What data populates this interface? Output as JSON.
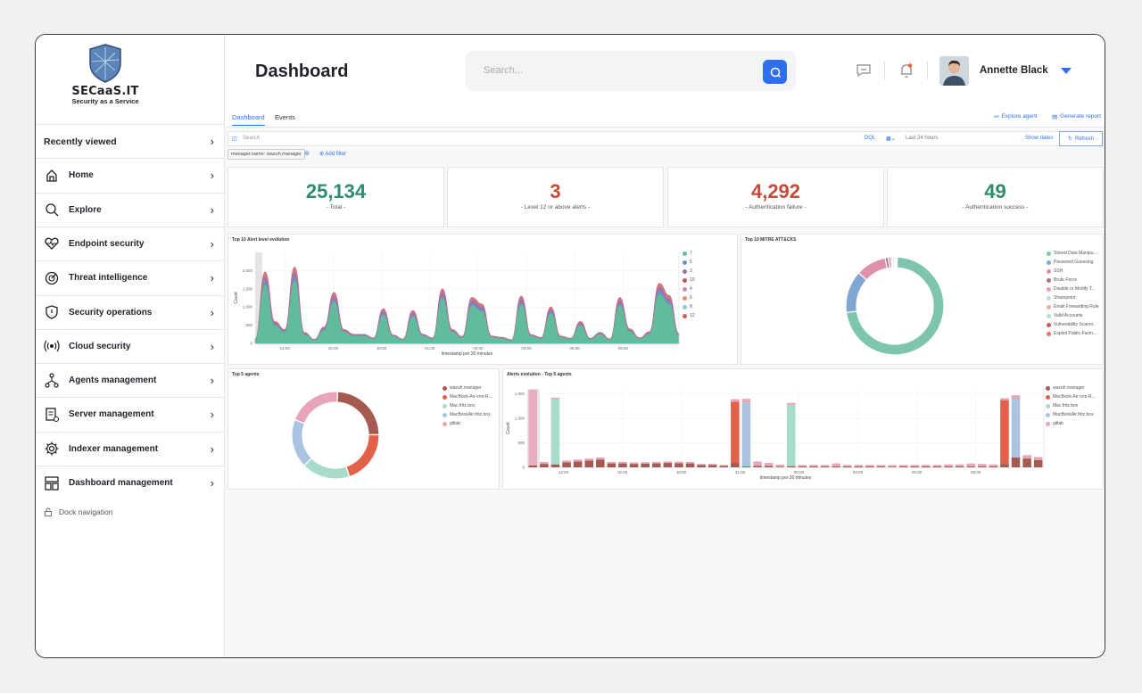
{
  "app": {
    "logo_name": "SECaaS.IT",
    "logo_tagline": "Security as a Service",
    "page_title": "Dashboard"
  },
  "search": {
    "placeholder": "Search..."
  },
  "user": {
    "name": "Annette Black"
  },
  "sidebar": {
    "items": [
      {
        "label": "Recently viewed",
        "icon": "none"
      },
      {
        "label": "Home",
        "icon": "home-icon"
      },
      {
        "label": "Explore",
        "icon": "search-icon"
      },
      {
        "label": "Endpoint security",
        "icon": "heartbeat-icon"
      },
      {
        "label": "Threat intelligence",
        "icon": "radar-icon"
      },
      {
        "label": "Security operations",
        "icon": "shield-icon"
      },
      {
        "label": "Cloud security",
        "icon": "broadcast-icon"
      },
      {
        "label": "Agents management",
        "icon": "network-icon"
      },
      {
        "label": "Server management",
        "icon": "server-doc-icon"
      },
      {
        "label": "Indexer management",
        "icon": "gear-icon"
      },
      {
        "label": "Dashboard management",
        "icon": "layout-icon"
      }
    ],
    "dock": "Dock navigation"
  },
  "tabs": {
    "dashboard": "Dashboard",
    "events": "Events",
    "explore_agent": "Explore agent",
    "generate_report": "Generate report"
  },
  "query": {
    "placeholder": "Search",
    "dql": "DQL",
    "time_range": "Last 24 hours",
    "show_dates": "Show dates",
    "refresh": "Refresh"
  },
  "filters": {
    "pill": "manager.name: wazuh.manager",
    "add": "Add filter"
  },
  "metrics": [
    {
      "value": "25,134",
      "label": "- Total -",
      "color": "#2e8b6e"
    },
    {
      "value": "3",
      "label": "- Level 12 or above alerts -",
      "color": "#c44a3a"
    },
    {
      "value": "4,292",
      "label": "- Authentication failure -",
      "color": "#c44a3a"
    },
    {
      "value": "49",
      "label": "- Authentication success -",
      "color": "#2e8b6e"
    }
  ],
  "chart_data": [
    {
      "type": "area",
      "title": "Top 10 Alert level evolution",
      "xlabel": "timestamp per 30 minutes",
      "ylabel": "Count",
      "y_ticks": [
        "0",
        "500",
        "1,000",
        "1,500",
        "2,000"
      ],
      "ylim": [
        0,
        2500
      ],
      "x_ticks": [
        "12:00",
        "15:00",
        "18:00",
        "21:00",
        "00:00",
        "03:00",
        "06:00",
        "09:00"
      ],
      "legend": [
        "7",
        "5",
        "3",
        "10",
        "4",
        "6",
        "8",
        "12"
      ],
      "legend_colors": [
        "#5fbf9a",
        "#6e8fc4",
        "#9a6fb0",
        "#b65a5a",
        "#c98fa3",
        "#e08f76",
        "#8bc7d8",
        "#d65a5a"
      ],
      "series_total": [
        120,
        1960,
        600,
        380,
        2100,
        300,
        110,
        450,
        1400,
        380,
        250,
        250,
        150,
        950,
        230,
        120,
        900,
        250,
        150,
        1500,
        380,
        190,
        1260,
        1080,
        200,
        170,
        100,
        1300,
        240,
        160,
        1000,
        200,
        140,
        600,
        140,
        300,
        120,
        1260,
        400,
        150,
        320,
        1650,
        1320,
        260
      ]
    },
    {
      "type": "pie",
      "title": "Top 10 MITRE ATT&CKS",
      "legend": [
        "Stored Data Manipu...",
        "Password Guessing",
        "SSH",
        "Brute Force",
        "Disable or Modify T...",
        "Sharepoint",
        "Email Forwarding Rule",
        "Valid Accounts",
        "Vulnerability Scanni...",
        "Exploit Public-Facin..."
      ],
      "values": [
        72,
        14,
        10,
        1,
        1,
        0.5,
        0.5,
        0.5,
        0.3,
        0.2
      ],
      "colors": [
        "#7dc6ad",
        "#7fa7d1",
        "#e08fa8",
        "#a4757f",
        "#e6a0b2",
        "#c7d6e6",
        "#e6b0a4",
        "#b5e0d2",
        "#c0606b",
        "#e8746a"
      ]
    },
    {
      "type": "pie",
      "title": "Top 5 agents",
      "legend": [
        "wazuh.manager",
        "MacBook-Air-von-R...",
        "Mac.fritz.box",
        "MacBookAir.fritz.box",
        "gitlab"
      ],
      "values": [
        24,
        20,
        18,
        18,
        20
      ],
      "colors": [
        "#a65a4f",
        "#e3604b",
        "#a8dcc9",
        "#a9c3e0",
        "#e8a5b9"
      ]
    },
    {
      "type": "bar",
      "title": "Alerts evolution - Top 5 agents",
      "xlabel": "timestamp per 30 minutes",
      "ylabel": "Count",
      "y_ticks": [
        "0",
        "500",
        "1,000",
        "1,500"
      ],
      "ylim": [
        0,
        1600
      ],
      "x_ticks": [
        "12:00",
        "15:00",
        "18:00",
        "21:00",
        "00:00",
        "03:00",
        "06:00",
        "09:00"
      ],
      "legend": [
        "wazuh.manager",
        "MacBook-Air-von-R...",
        "Mac.fritz.box",
        "MacBookAir.fritz.box",
        "gitlab"
      ],
      "colors": [
        "#a65a4f",
        "#e3604b",
        "#a8dcc9",
        "#a9c3e0",
        "#e8a5b9"
      ],
      "wazuh_manager": [
        40,
        70,
        60,
        100,
        120,
        140,
        160,
        80,
        80,
        70,
        75,
        80,
        90,
        85,
        80,
        50,
        50,
        30,
        90,
        20,
        30,
        30,
        15,
        25,
        20,
        20,
        20,
        20,
        20,
        20,
        20,
        20,
        15,
        20,
        20,
        20,
        20,
        20,
        20,
        20,
        20,
        20,
        70,
        200,
        180,
        150
      ],
      "macbook_air_von_r": [
        0,
        0,
        0,
        0,
        0,
        0,
        0,
        0,
        0,
        0,
        0,
        0,
        0,
        0,
        0,
        0,
        0,
        0,
        1250,
        0,
        0,
        0,
        0,
        0,
        0,
        0,
        0,
        0,
        0,
        0,
        0,
        0,
        0,
        0,
        0,
        0,
        0,
        0,
        0,
        0,
        0,
        0,
        1300,
        0,
        0,
        0
      ],
      "mac_fritz_box": [
        0,
        0,
        1330,
        0,
        0,
        0,
        0,
        0,
        0,
        0,
        0,
        0,
        0,
        0,
        0,
        0,
        0,
        0,
        0,
        0,
        0,
        0,
        0,
        1250,
        0,
        0,
        0,
        0,
        0,
        0,
        0,
        0,
        0,
        0,
        0,
        0,
        0,
        0,
        0,
        0,
        0,
        0,
        0,
        0,
        0,
        0
      ],
      "macbookair_fritz_box": [
        0,
        0,
        0,
        0,
        0,
        0,
        0,
        0,
        0,
        0,
        0,
        0,
        0,
        0,
        0,
        0,
        0,
        0,
        0,
        1300,
        0,
        0,
        0,
        0,
        0,
        0,
        0,
        0,
        0,
        0,
        0,
        0,
        0,
        0,
        0,
        0,
        0,
        0,
        0,
        0,
        0,
        0,
        0,
        1200,
        0,
        0
      ],
      "gitlab": [
        20,
        40,
        30,
        40,
        40,
        40,
        40,
        30,
        30,
        30,
        30,
        30,
        30,
        30,
        30,
        20,
        20,
        20,
        50,
        50,
        90,
        60,
        40,
        40,
        30,
        30,
        30,
        60,
        30,
        30,
        30,
        30,
        30,
        30,
        30,
        30,
        30,
        40,
        40,
        60,
        50,
        40,
        40,
        70,
        70,
        60
      ],
      "extra": [
        1580,
        0,
        1380,
        0,
        0,
        0,
        0,
        0,
        0,
        0,
        0,
        0,
        0,
        0,
        0,
        0,
        0,
        0,
        1380,
        1400,
        0,
        0,
        0,
        1300,
        0,
        0,
        0,
        0,
        0,
        0,
        0,
        0,
        0,
        0,
        0,
        0,
        0,
        0,
        0,
        0,
        0,
        0,
        1400,
        1430,
        0,
        0
      ]
    }
  ]
}
